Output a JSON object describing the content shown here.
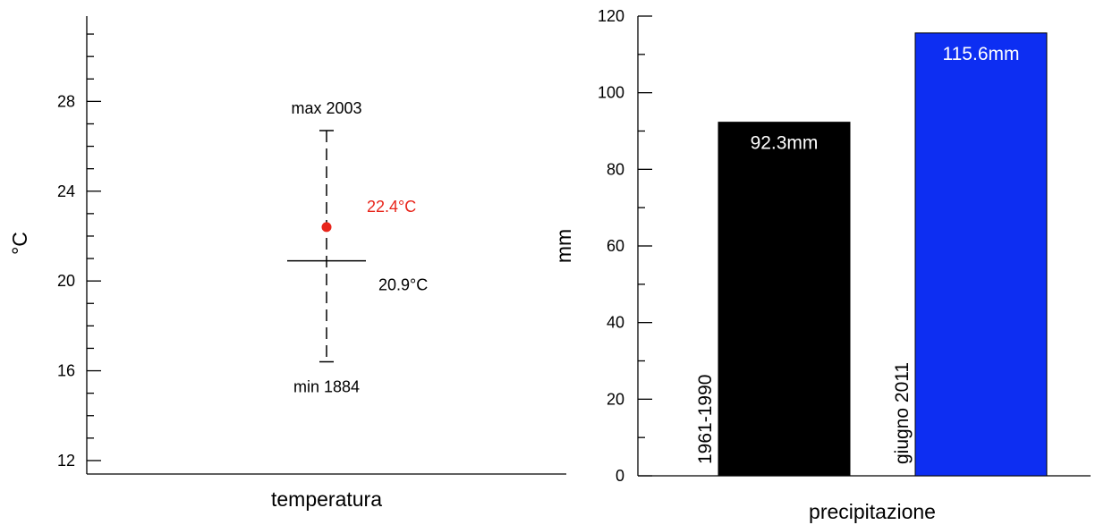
{
  "colors": {
    "observed_marker": "#e8251b",
    "bar_reference": "#000000",
    "bar_current": "#0d2ef2"
  },
  "chart_data": [
    {
      "type": "scatter",
      "xlabel": "temperatura",
      "ylabel": "°C",
      "ylim": [
        11.4,
        31.8
      ],
      "yticks": [
        12,
        16,
        20,
        24,
        28
      ],
      "ytick_labels": [
        "12",
        "16",
        "20",
        "24",
        "28"
      ],
      "minor_tick_step": 1,
      "grid": false,
      "range": {
        "max": {
          "value": 26.7,
          "label": "max 2003"
        },
        "min": {
          "value": 16.4,
          "label": "min 1884"
        }
      },
      "mean": {
        "value": 20.9,
        "label": "20.9°C"
      },
      "observed": {
        "value": 22.4,
        "label": "22.4°C"
      }
    },
    {
      "type": "bar",
      "xlabel": "precipitazione",
      "ylabel": "mm",
      "ylim": [
        0,
        120
      ],
      "yticks": [
        0,
        20,
        40,
        60,
        80,
        100,
        120
      ],
      "ytick_labels": [
        "0",
        "20",
        "40",
        "60",
        "80",
        "100",
        "120"
      ],
      "minor_tick_step": 10,
      "grid": false,
      "categories": [
        "1961-1990",
        "giugno 2011"
      ],
      "values": [
        92.3,
        115.6
      ],
      "value_labels": [
        "92.3mm",
        "115.6mm"
      ]
    }
  ]
}
